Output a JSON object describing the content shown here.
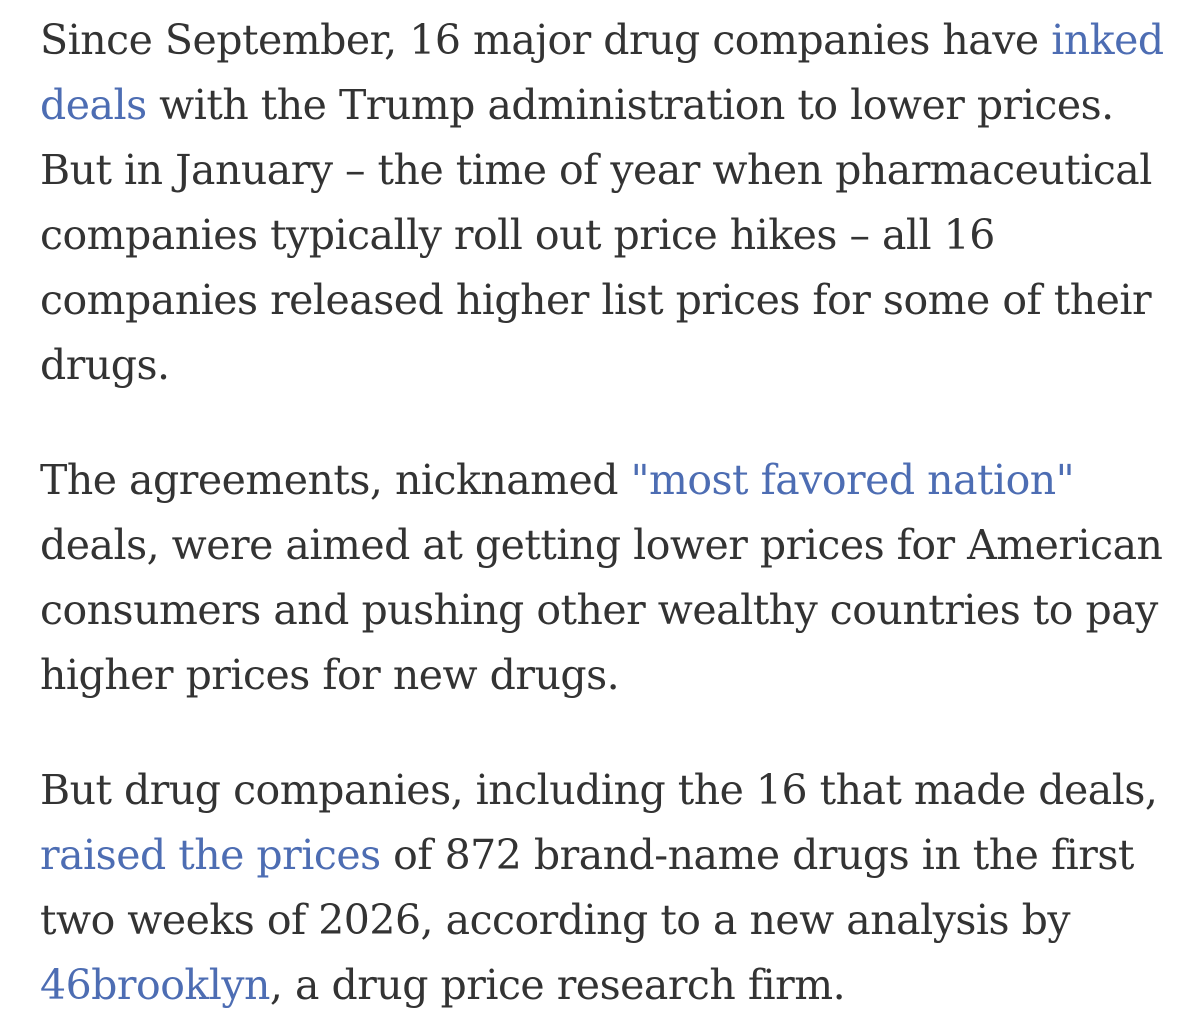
{
  "page": {
    "background": "#ffffff",
    "text_color": "#333333",
    "link_color": "#4d6db3"
  },
  "article": {
    "paragraphs": [
      {
        "name": "paragraph-deals-price-hikes",
        "segments": [
          {
            "type": "text",
            "text": "Since September, 16 major drug companies have "
          },
          {
            "type": "link",
            "name": "link-inked-deals",
            "text": "inked\ndeals"
          },
          {
            "type": "text",
            "text": " with the Trump administration to lower prices.\nBut in January – the time of year when pharmaceutical\ncompanies typically roll out price hikes – all 16\ncompanies released higher list prices for some of their\ndrugs."
          }
        ]
      },
      {
        "name": "paragraph-most-favored-nation",
        "segments": [
          {
            "type": "text",
            "text": "The agreements, nicknamed "
          },
          {
            "type": "link",
            "name": "link-most-favored-nation",
            "text": "\"most favored nation\""
          },
          {
            "type": "text",
            "text": "\ndeals, were aimed at getting lower prices for American\nconsumers and pushing other wealthy countries to pay\nhigher prices for new drugs."
          }
        ]
      },
      {
        "name": "paragraph-raised-prices-analysis",
        "segments": [
          {
            "type": "text",
            "text": "But drug companies, including the 16 that made deals,\n"
          },
          {
            "type": "link",
            "name": "link-raised-the-prices",
            "text": "raised the prices"
          },
          {
            "type": "text",
            "text": " of 872 brand-name drugs in the first\ntwo weeks of 2026, according to a new analysis by\n"
          },
          {
            "type": "link",
            "name": "link-46brooklyn",
            "text": "46brooklyn"
          },
          {
            "type": "text",
            "text": ", a drug price research firm."
          }
        ]
      }
    ]
  }
}
